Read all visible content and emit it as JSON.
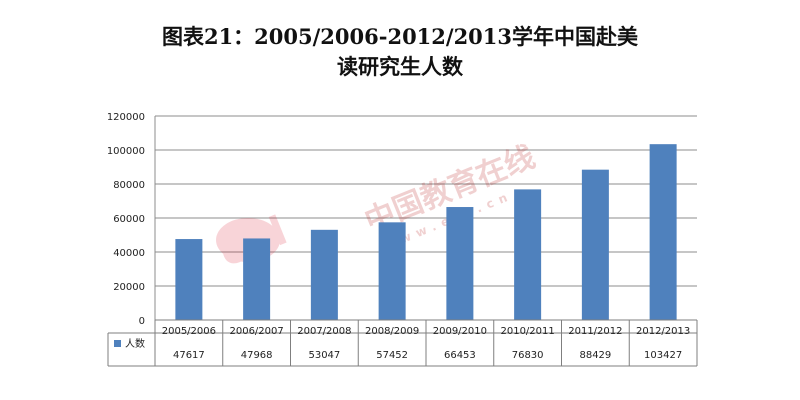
{
  "title": {
    "line1": "图表21：2005/2006-2012/2013学年中国赴美",
    "line2": "读研究生人数"
  },
  "watermark": {
    "logo_text": "eol",
    "cn_text": "中国教育在线",
    "domain": "www.eol.cn"
  },
  "chart_data": {
    "type": "bar",
    "title": "图表21：2005/2006-2012/2013学年中国赴美读研究生人数",
    "categories": [
      "2005/2006",
      "2006/2007",
      "2007/2008",
      "2008/2009",
      "2009/2010",
      "2010/2011",
      "2011/2012",
      "2012/2013"
    ],
    "series": [
      {
        "name": "人数",
        "values": [
          47617,
          47968,
          53047,
          57452,
          66453,
          76830,
          88429,
          103427
        ],
        "color": "#4f81bd"
      }
    ],
    "ylim": [
      0,
      120000
    ],
    "yticks": [
      0,
      20000,
      40000,
      60000,
      80000,
      100000,
      120000
    ],
    "grid": true,
    "legend": "data-table",
    "data_table": true
  }
}
